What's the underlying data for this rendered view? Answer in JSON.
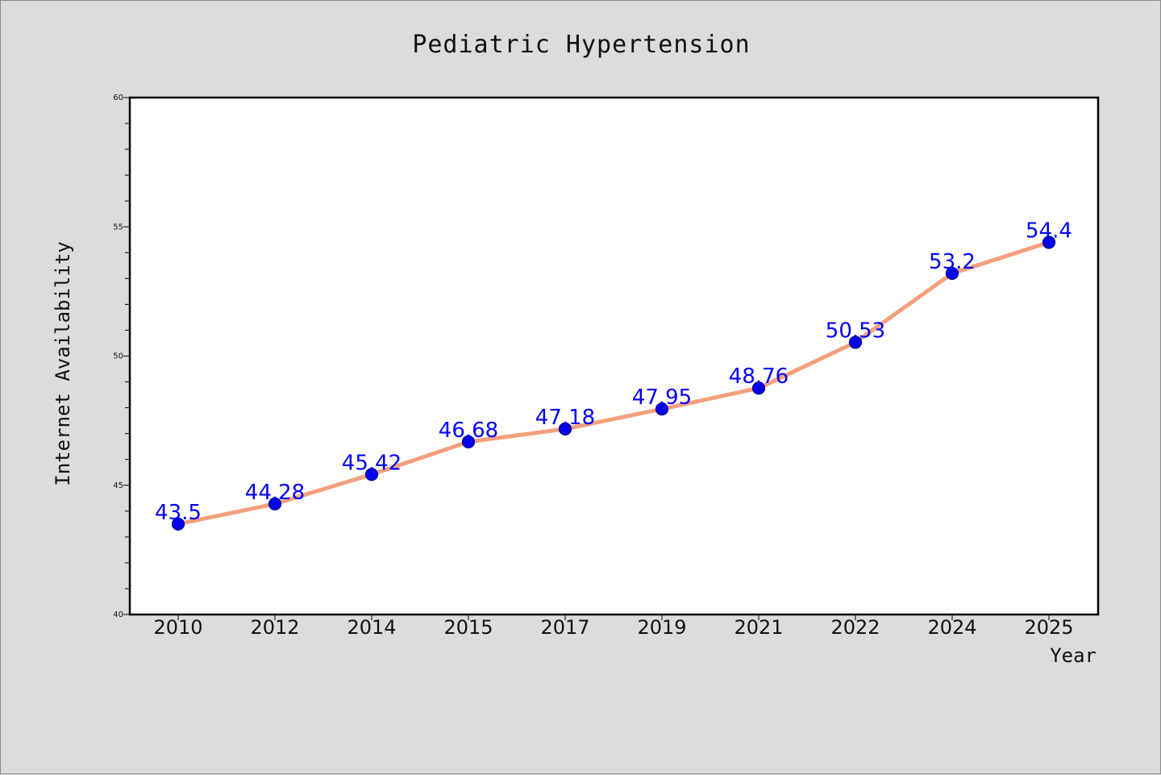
{
  "chart_data": {
    "type": "line",
    "title": "Pediatric Hypertension",
    "xlabel": "Year",
    "ylabel": "Internet Availability",
    "categories": [
      "2010",
      "2012",
      "2014",
      "2015",
      "2017",
      "2019",
      "2021",
      "2022",
      "2024",
      "2025"
    ],
    "values": [
      43.5,
      44.28,
      45.42,
      46.68,
      47.18,
      47.95,
      48.76,
      50.53,
      53.2,
      54.4
    ],
    "data_labels": [
      "43.5",
      "44.28",
      "45.42",
      "46.68",
      "47.18",
      "47.95",
      "48.76",
      "50.53",
      "53.2",
      "54.4"
    ],
    "ylim": [
      40,
      60
    ],
    "yticks": [
      "40",
      "45",
      "50",
      "55",
      "60"
    ],
    "grid": false,
    "legend": "none",
    "colors": {
      "line": "#f4a07c",
      "marker": "#0000ee",
      "marker_edge": "#000080",
      "data_label": "#0000ff",
      "background": "#dcdcdc",
      "plot_area": "#ffffff"
    }
  }
}
